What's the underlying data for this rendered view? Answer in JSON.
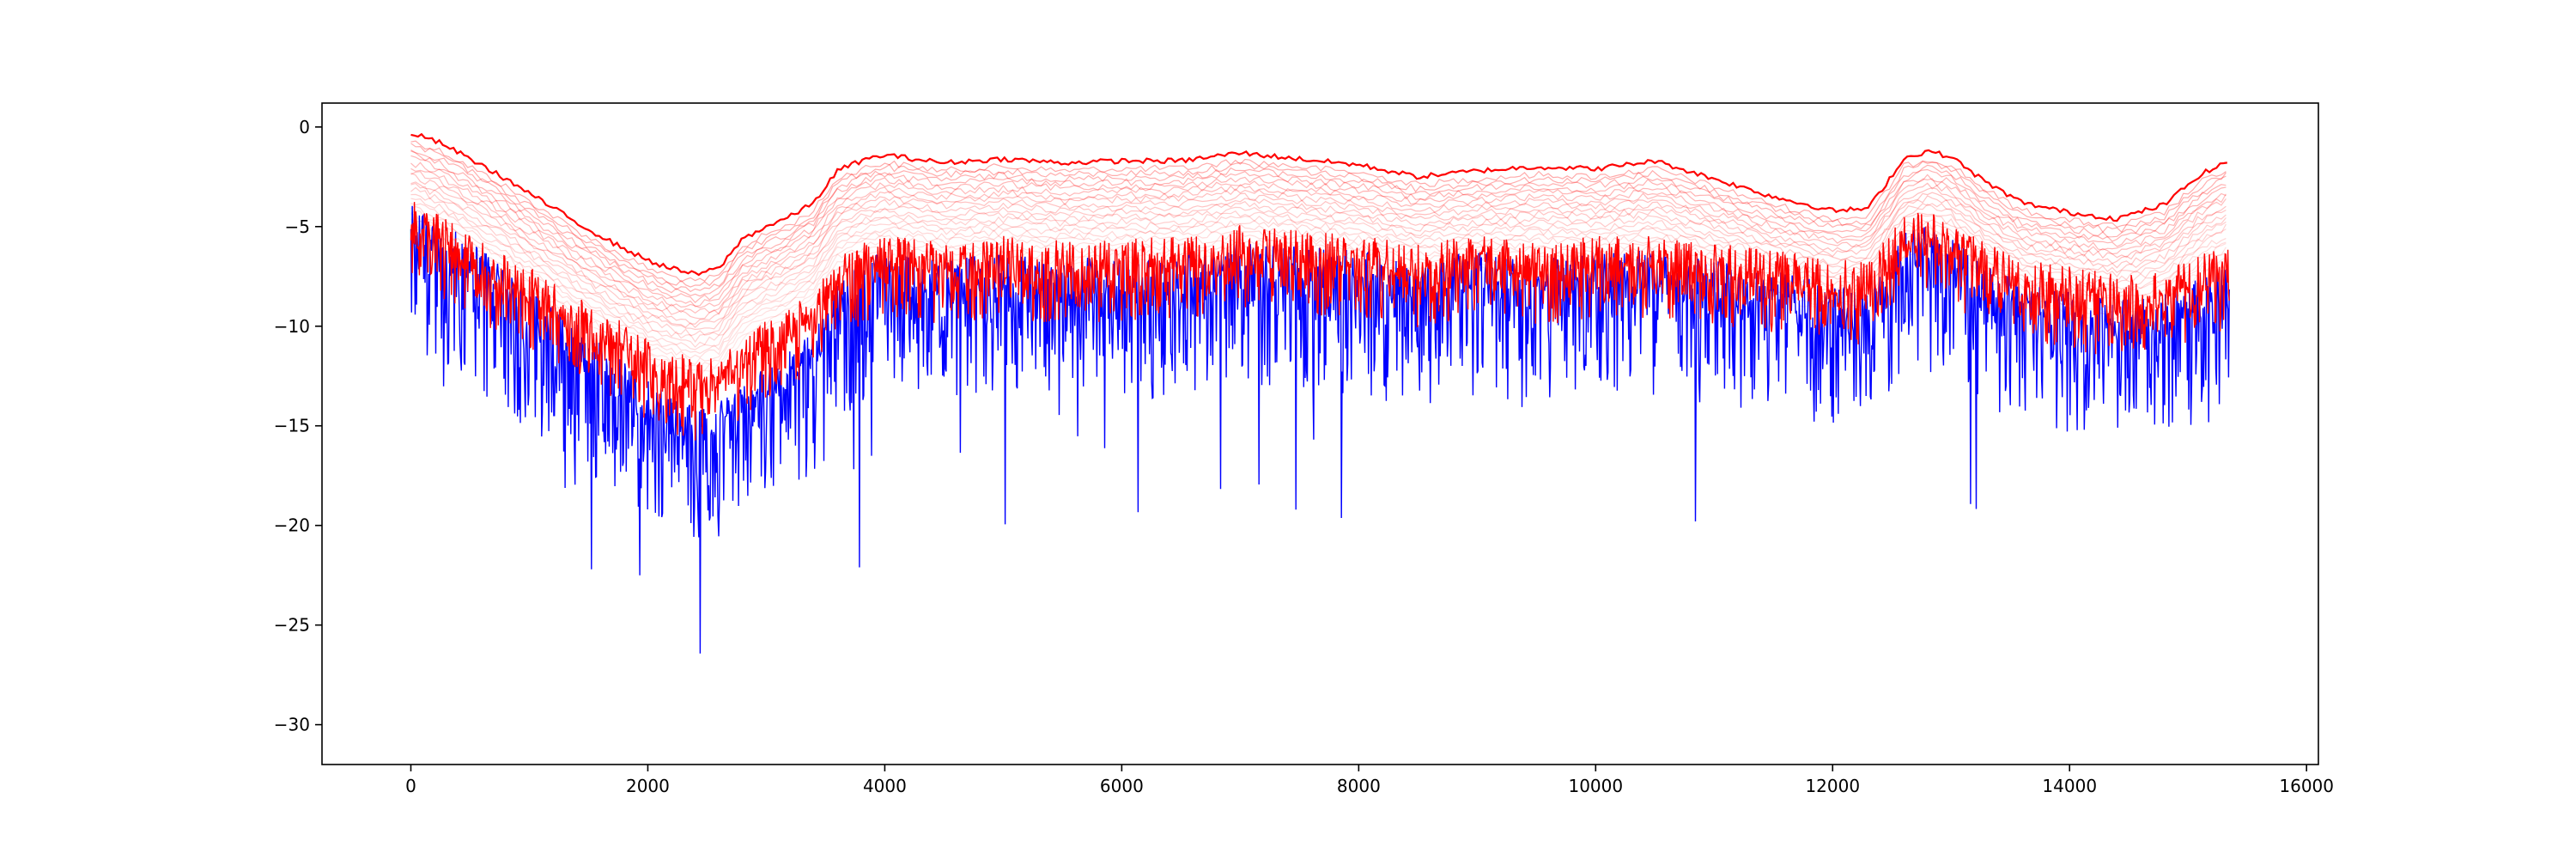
{
  "chart_data": {
    "type": "line",
    "title": "",
    "xlabel": "",
    "ylabel": "",
    "xlim": [
      -750,
      16100
    ],
    "ylim": [
      -32,
      1.2
    ],
    "x_ticks": [
      0,
      2000,
      4000,
      6000,
      8000,
      10000,
      12000,
      14000,
      16000
    ],
    "x_tick_labels": [
      "0",
      "2000",
      "4000",
      "6000",
      "8000",
      "10000",
      "12000",
      "14000",
      "16000"
    ],
    "y_ticks": [
      0,
      -5,
      -10,
      -15,
      -20,
      -25,
      -30
    ],
    "y_tick_labels": [
      "0",
      "−5",
      "−10",
      "−15",
      "−20",
      "−25",
      "−30"
    ],
    "grid": false,
    "legend": false,
    "colors": {
      "blue_series": "#0000ff",
      "red_series": "#ff0000",
      "axes": "#000000"
    },
    "series": [
      {
        "color": "#0000ff",
        "style": "noisy",
        "x": [
          0,
          250,
          500,
          800,
          1100,
          1400,
          1700,
          2000,
          2200,
          2400,
          2600,
          2800,
          3000,
          3200,
          3400,
          3600,
          3800,
          4000,
          4500,
          5000,
          5500,
          6000,
          6500,
          7000,
          7500,
          8000,
          8500,
          9000,
          9500,
          10000,
          10500,
          11000,
          11500,
          12000,
          12300,
          12600,
          12800,
          13000,
          13300,
          13600,
          14000,
          14400,
          14800,
          15100,
          15350
        ],
        "y": [
          -5.5,
          -6.5,
          -7.5,
          -8.8,
          -10.2,
          -11.6,
          -13.0,
          -14.5,
          -15.3,
          -15.7,
          -15.6,
          -14.8,
          -13.8,
          -12.8,
          -12.2,
          -9.5,
          -8.6,
          -8.0,
          -8.5,
          -8.0,
          -8.4,
          -8.2,
          -8.1,
          -7.4,
          -7.8,
          -8.0,
          -8.6,
          -8.0,
          -8.5,
          -8.0,
          -8.0,
          -8.5,
          -9.0,
          -9.6,
          -9.9,
          -7.0,
          -6.8,
          -7.4,
          -8.5,
          -9.5,
          -10.0,
          -10.5,
          -10.2,
          -9.4,
          -8.8
        ],
        "noise_down": 5.5,
        "noise_up": 1.8
      },
      {
        "color": "#ff0000",
        "style": "noisy-band",
        "x": [
          0,
          250,
          500,
          800,
          1100,
          1400,
          1700,
          2000,
          2200,
          2400,
          2600,
          2800,
          3000,
          3200,
          3400,
          3600,
          3800,
          4000,
          4500,
          5000,
          5500,
          6000,
          6500,
          7000,
          7500,
          8000,
          8500,
          9000,
          9500,
          10000,
          10500,
          11000,
          11500,
          12000,
          12300,
          12600,
          12800,
          13000,
          13300,
          13600,
          14000,
          14400,
          14800,
          15100,
          15350
        ],
        "y": [
          -5.0,
          -6.0,
          -7.0,
          -8.0,
          -9.0,
          -10.0,
          -11.0,
          -12.2,
          -12.8,
          -13.2,
          -13.0,
          -12.2,
          -11.2,
          -10.5,
          -10.0,
          -8.0,
          -7.4,
          -7.0,
          -7.4,
          -7.0,
          -7.3,
          -7.2,
          -7.1,
          -6.5,
          -6.8,
          -7.0,
          -7.5,
          -7.0,
          -7.4,
          -7.0,
          -7.0,
          -7.4,
          -7.8,
          -8.2,
          -8.4,
          -6.0,
          -5.8,
          -6.4,
          -7.4,
          -8.2,
          -8.6,
          -9.0,
          -8.8,
          -8.0,
          -7.5
        ],
        "noise_down": 2.6,
        "noise_up": 1.6
      },
      {
        "color": "#ff0000",
        "style": "upper-envelope",
        "x": [
          0,
          250,
          500,
          800,
          1100,
          1400,
          1700,
          2000,
          2200,
          2400,
          2600,
          2800,
          3000,
          3200,
          3400,
          3600,
          3800,
          4000,
          4500,
          5000,
          5500,
          6000,
          6500,
          7000,
          7500,
          8000,
          8500,
          9000,
          9500,
          10000,
          10500,
          11000,
          11500,
          12000,
          12300,
          12600,
          12800,
          13000,
          13300,
          13600,
          14000,
          14400,
          14800,
          15100,
          15350
        ],
        "y": [
          -0.3,
          -0.8,
          -1.6,
          -2.6,
          -3.7,
          -4.8,
          -5.8,
          -6.7,
          -7.1,
          -7.4,
          -7.1,
          -5.6,
          -5.0,
          -4.5,
          -3.8,
          -2.2,
          -1.7,
          -1.4,
          -1.8,
          -1.6,
          -1.8,
          -1.7,
          -1.7,
          -1.3,
          -1.6,
          -1.9,
          -2.5,
          -2.2,
          -2.0,
          -2.1,
          -1.7,
          -2.6,
          -3.5,
          -4.2,
          -4.1,
          -1.6,
          -1.2,
          -1.5,
          -2.8,
          -3.8,
          -4.3,
          -4.6,
          -3.9,
          -2.4,
          -1.7
        ]
      }
    ],
    "faded_envelopes": {
      "color": "#ff0000",
      "count": 22,
      "offset_step": 0.22
    }
  }
}
